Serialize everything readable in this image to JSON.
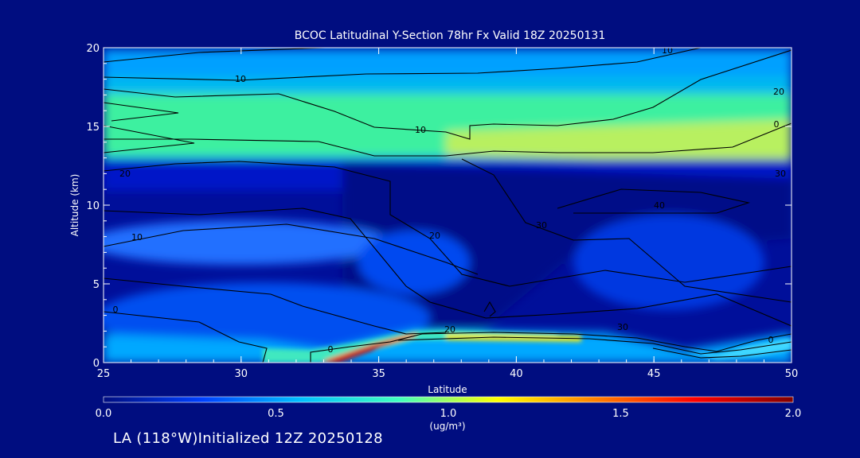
{
  "chart_data": {
    "type": "heatmap",
    "title": "BCOC Latitudinal Y-Section 78hr  Fx Valid 18Z 20250131",
    "xlabel": "Latitude",
    "ylabel": "Altitude (km)",
    "xlim": [
      25,
      50
    ],
    "ylim": [
      0,
      20
    ],
    "x_ticks": [
      "25",
      "30",
      "35",
      "40",
      "45",
      "50"
    ],
    "y_ticks": [
      "0",
      "5",
      "10",
      "15",
      "20"
    ],
    "colorbar": {
      "range": [
        0.0,
        2.0
      ],
      "ticks": [
        "0.0",
        "0.5",
        "1.0",
        "1.5",
        "2.0"
      ],
      "unit": "(ug/m³)",
      "colors": [
        "#000d80",
        "#0040ff",
        "#00c0ff",
        "#40ffbf",
        "#ffff00",
        "#ff8000",
        "#ff0000",
        "#800000"
      ]
    },
    "contour_labels": [
      "10",
      "20",
      "20",
      "30",
      "30",
      "20",
      "40",
      "10",
      "30",
      "20",
      "10",
      "0",
      "10",
      "0",
      "0",
      "0"
    ],
    "notable_features": {
      "upper_band_altitude_km": [
        13.5,
        17.0
      ],
      "upper_band_value": 0.9,
      "max_surface_value_near_lat": 33.5,
      "max_value": 2.0
    }
  },
  "footer": {
    "text": "LA (118°W)Initialized 12Z 20250128"
  }
}
